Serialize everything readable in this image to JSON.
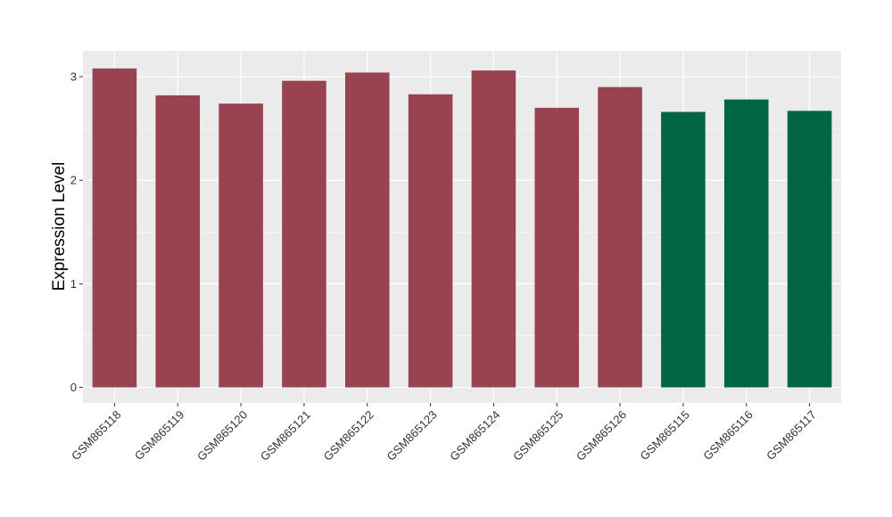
{
  "chart_data": {
    "type": "bar",
    "ylabel": "Expression Level",
    "xlabel": "",
    "ylim": [
      -0.15,
      3.25
    ],
    "yticks": [
      0,
      1,
      2,
      3
    ],
    "grid": true,
    "legend": "none",
    "categories": [
      "GSM865118",
      "GSM865119",
      "GSM865120",
      "GSM865121",
      "GSM865122",
      "GSM865123",
      "GSM865124",
      "GSM865125",
      "GSM865126",
      "GSM865115",
      "GSM865116",
      "GSM865117"
    ],
    "values": [
      3.08,
      2.82,
      2.74,
      2.96,
      3.04,
      2.83,
      3.06,
      2.7,
      2.9,
      2.66,
      2.78,
      2.67
    ],
    "bar_colors": [
      "#9A4350",
      "#9A4350",
      "#9A4350",
      "#9A4350",
      "#9A4350",
      "#9A4350",
      "#9A4350",
      "#9A4350",
      "#9A4350",
      "#016544",
      "#016544",
      "#016544"
    ],
    "panel_background": "#EBEBEB",
    "grid_color": "#FFFFFF"
  }
}
